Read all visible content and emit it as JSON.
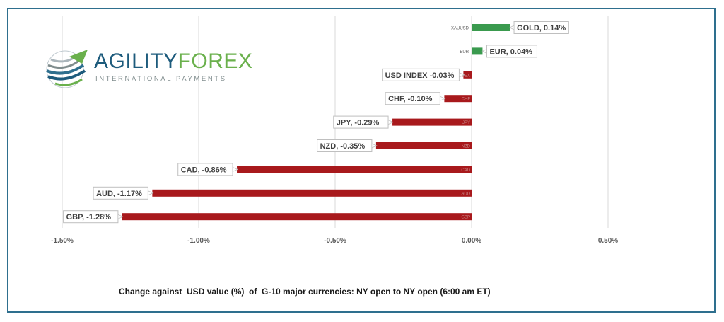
{
  "logo": {
    "name_part1": "AGILITY",
    "name_part2": "FOREX",
    "tagline": "INTERNATIONAL PAYMENTS",
    "color_primary": "#1d5b7c",
    "color_accent": "#6ab04c"
  },
  "caption": "Change against  USD value (%)  of  G-10 major currencies: NY open to NY open (6:00 am ET)",
  "chart_data": {
    "type": "bar",
    "orientation": "horizontal",
    "categories": [
      "XAUUSD",
      "EUR",
      "USD INDEX",
      "CHF",
      "JPY",
      "NZD",
      "CAD",
      "AUD",
      "GBP"
    ],
    "values": [
      0.14,
      0.04,
      -0.03,
      -0.1,
      -0.29,
      -0.35,
      -0.86,
      -1.17,
      -1.28
    ],
    "data_labels": [
      "GOLD, 0.14%",
      "EUR, 0.04%",
      "USD INDEX -0.03%",
      "CHF, -0.10%",
      "JPY, -0.29%",
      "NZD, -0.35%",
      "CAD, -0.86%",
      "AUD, -1.17%",
      "GBP, -1.28%"
    ],
    "xlim": [
      -1.5,
      0.5
    ],
    "x_ticks": [
      -1.5,
      -1.0,
      -0.5,
      0.0,
      0.5
    ],
    "x_tick_labels": [
      "-1.50%",
      "-1.00%",
      "-0.50%",
      "0.00%",
      "0.50%"
    ],
    "grid": true,
    "positive_color": "#3a9a4e",
    "negative_color": "#a8191c",
    "title": "",
    "xlabel": "",
    "ylabel": ""
  }
}
